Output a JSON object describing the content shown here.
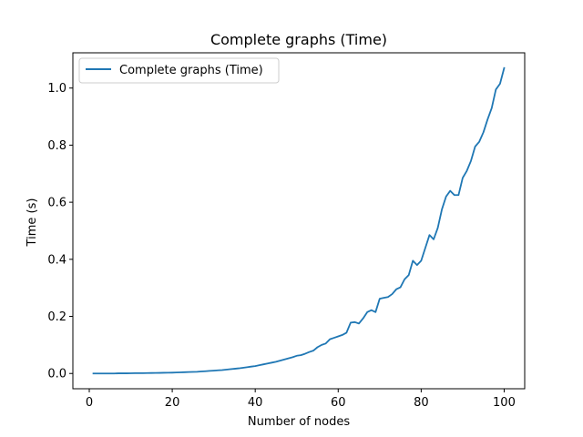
{
  "chart_data": {
    "type": "line",
    "title": "Complete graphs (Time)",
    "xlabel": "Number of nodes",
    "ylabel": "Time (s)",
    "xlim": [
      -3.95,
      104.95
    ],
    "ylim": [
      -0.0535,
      1.1235
    ],
    "xticks": [
      0,
      20,
      40,
      60,
      80,
      100
    ],
    "yticks": [
      0.0,
      0.2,
      0.4,
      0.6,
      0.8,
      1.0
    ],
    "xtick_labels": [
      "0",
      "20",
      "40",
      "60",
      "80",
      "100"
    ],
    "ytick_labels": [
      "0.0",
      "0.2",
      "0.4",
      "0.6",
      "0.8",
      "1.0"
    ],
    "grid": false,
    "legend_position": "top-left",
    "series": [
      {
        "name": "Complete graphs (Time)",
        "color": "#1f77b4",
        "x": [
          1,
          2,
          3,
          4,
          5,
          6,
          7,
          8,
          9,
          10,
          11,
          12,
          13,
          14,
          15,
          16,
          17,
          18,
          19,
          20,
          21,
          22,
          23,
          24,
          25,
          26,
          27,
          28,
          29,
          30,
          31,
          32,
          33,
          34,
          35,
          36,
          37,
          38,
          39,
          40,
          41,
          42,
          43,
          44,
          45,
          46,
          47,
          48,
          49,
          50,
          51,
          52,
          53,
          54,
          55,
          56,
          57,
          58,
          59,
          60,
          61,
          62,
          63,
          64,
          65,
          66,
          67,
          68,
          69,
          70,
          71,
          72,
          73,
          74,
          75,
          76,
          77,
          78,
          79,
          80,
          81,
          82,
          83,
          84,
          85,
          86,
          87,
          88,
          89,
          90,
          91,
          92,
          93,
          94,
          95,
          96,
          97,
          98,
          99,
          100
        ],
        "y": [
          0.0,
          0.0,
          0.0,
          0.0,
          0.0,
          0.0,
          0.0005,
          0.0005,
          0.0005,
          0.0008,
          0.001,
          0.001,
          0.0012,
          0.0015,
          0.0017,
          0.002,
          0.0022,
          0.0025,
          0.0028,
          0.003,
          0.0035,
          0.004,
          0.0045,
          0.005,
          0.0055,
          0.006,
          0.007,
          0.008,
          0.009,
          0.01,
          0.011,
          0.012,
          0.0135,
          0.015,
          0.0165,
          0.018,
          0.02,
          0.022,
          0.024,
          0.026,
          0.029,
          0.032,
          0.035,
          0.038,
          0.041,
          0.045,
          0.049,
          0.053,
          0.057,
          0.062,
          0.064,
          0.069,
          0.075,
          0.08,
          0.092,
          0.1,
          0.105,
          0.12,
          0.125,
          0.13,
          0.135,
          0.143,
          0.178,
          0.18,
          0.175,
          0.193,
          0.215,
          0.222,
          0.215,
          0.262,
          0.265,
          0.268,
          0.278,
          0.295,
          0.302,
          0.33,
          0.345,
          0.395,
          0.38,
          0.395,
          0.44,
          0.485,
          0.47,
          0.51,
          0.575,
          0.62,
          0.64,
          0.625,
          0.625,
          0.685,
          0.71,
          0.745,
          0.795,
          0.812,
          0.845,
          0.89,
          0.93,
          0.995,
          1.015,
          1.07
        ]
      }
    ]
  }
}
